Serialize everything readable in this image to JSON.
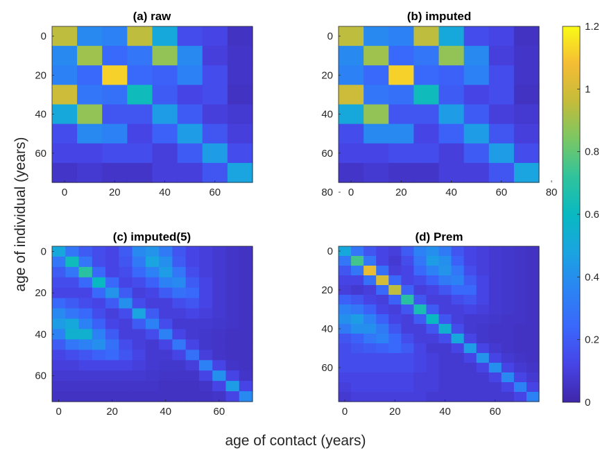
{
  "figure": {
    "ylabel": "age of individual (years)",
    "xlabel": "age of contact (years)"
  },
  "colorbar": {
    "colormap": "parula",
    "range": [
      0,
      1.2
    ],
    "ticks": [
      "0",
      "0.2",
      "0.4",
      "0.6",
      "0.8",
      "1",
      "1.2"
    ]
  },
  "chart_data": [
    {
      "type": "heatmap",
      "title": "(a) raw",
      "bin_years": 10,
      "xticks": [
        "0",
        "20",
        "40",
        "60"
      ],
      "yticks": [
        "0",
        "20",
        "40",
        "60"
      ],
      "matrix": [
        [
          0.95,
          0.38,
          0.35,
          0.95,
          0.5,
          0.15,
          0.12,
          0.05
        ],
        [
          0.38,
          0.9,
          0.25,
          0.3,
          0.88,
          0.38,
          0.1,
          0.06
        ],
        [
          0.35,
          0.25,
          1.12,
          0.25,
          0.22,
          0.35,
          0.15,
          0.06
        ],
        [
          0.98,
          0.3,
          0.28,
          0.62,
          0.2,
          0.12,
          0.15,
          0.05
        ],
        [
          0.5,
          0.88,
          0.18,
          0.18,
          0.45,
          0.2,
          0.1,
          0.08
        ],
        [
          0.15,
          0.38,
          0.35,
          0.12,
          0.22,
          0.45,
          0.18,
          0.1
        ],
        [
          0.12,
          0.12,
          0.15,
          0.15,
          0.1,
          0.2,
          0.45,
          0.15
        ],
        [
          0.06,
          0.08,
          0.06,
          0.06,
          0.1,
          0.1,
          0.18,
          0.48
        ]
      ]
    },
    {
      "type": "heatmap",
      "title": "(b) imputed",
      "bin_years": 10,
      "xticks": [
        "0",
        "20",
        "40",
        "60",
        "80"
      ],
      "yticks": [
        "0",
        "20",
        "40",
        "60",
        "80"
      ],
      "matrix": [
        [
          0.95,
          0.38,
          0.35,
          0.95,
          0.5,
          0.15,
          0.12,
          0.05
        ],
        [
          0.38,
          0.9,
          0.25,
          0.3,
          0.88,
          0.38,
          0.1,
          0.06
        ],
        [
          0.35,
          0.25,
          1.12,
          0.25,
          0.22,
          0.35,
          0.15,
          0.06
        ],
        [
          0.98,
          0.3,
          0.28,
          0.62,
          0.2,
          0.12,
          0.15,
          0.05
        ],
        [
          0.5,
          0.88,
          0.18,
          0.18,
          0.45,
          0.2,
          0.1,
          0.08
        ],
        [
          0.15,
          0.38,
          0.38,
          0.12,
          0.22,
          0.45,
          0.18,
          0.1
        ],
        [
          0.12,
          0.12,
          0.15,
          0.15,
          0.1,
          0.2,
          0.45,
          0.15
        ],
        [
          0.06,
          0.08,
          0.06,
          0.06,
          0.1,
          0.1,
          0.18,
          0.48
        ]
      ]
    },
    {
      "type": "heatmap",
      "title": "(c) imputed(5)",
      "bin_years": 5,
      "xticks": [
        "0",
        "20",
        "40",
        "60"
      ],
      "yticks": [
        "0",
        "20",
        "40",
        "60"
      ],
      "matrix": [
        [
          0.5,
          0.3,
          0.2,
          0.15,
          0.12,
          0.2,
          0.38,
          0.42,
          0.32,
          0.18,
          0.12,
          0.1,
          0.08,
          0.06,
          0.05
        ],
        [
          0.3,
          0.62,
          0.3,
          0.15,
          0.12,
          0.18,
          0.32,
          0.48,
          0.4,
          0.2,
          0.12,
          0.1,
          0.08,
          0.06,
          0.05
        ],
        [
          0.2,
          0.3,
          0.7,
          0.25,
          0.12,
          0.15,
          0.25,
          0.35,
          0.45,
          0.3,
          0.15,
          0.1,
          0.08,
          0.06,
          0.05
        ],
        [
          0.15,
          0.15,
          0.25,
          0.6,
          0.25,
          0.12,
          0.15,
          0.22,
          0.35,
          0.38,
          0.2,
          0.12,
          0.08,
          0.06,
          0.05
        ],
        [
          0.12,
          0.12,
          0.12,
          0.25,
          0.42,
          0.2,
          0.1,
          0.12,
          0.2,
          0.28,
          0.25,
          0.12,
          0.08,
          0.06,
          0.05
        ],
        [
          0.25,
          0.2,
          0.15,
          0.12,
          0.2,
          0.4,
          0.15,
          0.1,
          0.1,
          0.15,
          0.18,
          0.12,
          0.08,
          0.06,
          0.05
        ],
        [
          0.38,
          0.3,
          0.25,
          0.15,
          0.1,
          0.15,
          0.48,
          0.2,
          0.1,
          0.1,
          0.12,
          0.1,
          0.08,
          0.06,
          0.05
        ],
        [
          0.45,
          0.5,
          0.35,
          0.22,
          0.12,
          0.1,
          0.2,
          0.35,
          0.15,
          0.08,
          0.08,
          0.08,
          0.07,
          0.06,
          0.05
        ],
        [
          0.35,
          0.55,
          0.55,
          0.35,
          0.2,
          0.1,
          0.1,
          0.15,
          0.35,
          0.12,
          0.08,
          0.07,
          0.06,
          0.05,
          0.05
        ],
        [
          0.2,
          0.3,
          0.35,
          0.4,
          0.28,
          0.15,
          0.1,
          0.08,
          0.12,
          0.3,
          0.12,
          0.07,
          0.06,
          0.05,
          0.05
        ],
        [
          0.12,
          0.15,
          0.18,
          0.22,
          0.25,
          0.18,
          0.12,
          0.08,
          0.08,
          0.12,
          0.28,
          0.1,
          0.06,
          0.05,
          0.05
        ],
        [
          0.1,
          0.1,
          0.12,
          0.12,
          0.12,
          0.12,
          0.1,
          0.08,
          0.07,
          0.07,
          0.1,
          0.35,
          0.12,
          0.06,
          0.05
        ],
        [
          0.08,
          0.08,
          0.08,
          0.08,
          0.08,
          0.08,
          0.08,
          0.07,
          0.06,
          0.06,
          0.06,
          0.12,
          0.4,
          0.12,
          0.06
        ],
        [
          0.06,
          0.06,
          0.06,
          0.06,
          0.06,
          0.06,
          0.06,
          0.06,
          0.05,
          0.05,
          0.05,
          0.06,
          0.12,
          0.45,
          0.12
        ],
        [
          0.05,
          0.05,
          0.05,
          0.05,
          0.05,
          0.05,
          0.05,
          0.05,
          0.05,
          0.05,
          0.05,
          0.05,
          0.06,
          0.12,
          0.38
        ]
      ]
    },
    {
      "type": "heatmap",
      "title": "(d) Prem",
      "bin_years": 5,
      "xticks": [
        "0",
        "20",
        "40",
        "60"
      ],
      "yticks": [
        "0",
        "20",
        "40",
        "60"
      ],
      "matrix": [
        [
          0.5,
          0.3,
          0.18,
          0.12,
          0.1,
          0.2,
          0.35,
          0.4,
          0.32,
          0.18,
          0.12,
          0.1,
          0.08,
          0.07,
          0.06,
          0.05
        ],
        [
          0.3,
          0.75,
          0.3,
          0.12,
          0.08,
          0.15,
          0.3,
          0.45,
          0.4,
          0.22,
          0.12,
          0.1,
          0.08,
          0.07,
          0.06,
          0.05
        ],
        [
          0.18,
          0.3,
          1.05,
          0.28,
          0.1,
          0.12,
          0.25,
          0.35,
          0.42,
          0.3,
          0.15,
          0.1,
          0.08,
          0.07,
          0.06,
          0.05
        ],
        [
          0.12,
          0.12,
          0.28,
          1.0,
          0.25,
          0.12,
          0.15,
          0.22,
          0.32,
          0.35,
          0.2,
          0.12,
          0.08,
          0.07,
          0.06,
          0.05
        ],
        [
          0.1,
          0.08,
          0.1,
          0.25,
          0.95,
          0.22,
          0.1,
          0.12,
          0.18,
          0.25,
          0.25,
          0.12,
          0.08,
          0.07,
          0.06,
          0.05
        ],
        [
          0.22,
          0.18,
          0.12,
          0.1,
          0.22,
          0.7,
          0.18,
          0.1,
          0.1,
          0.15,
          0.18,
          0.12,
          0.08,
          0.07,
          0.06,
          0.05
        ],
        [
          0.35,
          0.3,
          0.22,
          0.12,
          0.1,
          0.18,
          0.65,
          0.2,
          0.1,
          0.1,
          0.12,
          0.1,
          0.08,
          0.07,
          0.06,
          0.05
        ],
        [
          0.4,
          0.45,
          0.35,
          0.22,
          0.12,
          0.1,
          0.2,
          0.6,
          0.18,
          0.1,
          0.08,
          0.08,
          0.07,
          0.06,
          0.06,
          0.05
        ],
        [
          0.32,
          0.4,
          0.4,
          0.32,
          0.18,
          0.1,
          0.1,
          0.18,
          0.55,
          0.15,
          0.08,
          0.07,
          0.06,
          0.06,
          0.05,
          0.05
        ],
        [
          0.18,
          0.22,
          0.3,
          0.35,
          0.25,
          0.15,
          0.1,
          0.1,
          0.15,
          0.5,
          0.12,
          0.07,
          0.06,
          0.06,
          0.05,
          0.05
        ],
        [
          0.15,
          0.18,
          0.2,
          0.22,
          0.25,
          0.2,
          0.12,
          0.08,
          0.08,
          0.12,
          0.45,
          0.12,
          0.08,
          0.06,
          0.05,
          0.05
        ],
        [
          0.15,
          0.15,
          0.15,
          0.15,
          0.15,
          0.15,
          0.12,
          0.1,
          0.08,
          0.08,
          0.12,
          0.42,
          0.12,
          0.08,
          0.06,
          0.05
        ],
        [
          0.15,
          0.15,
          0.15,
          0.15,
          0.15,
          0.15,
          0.12,
          0.1,
          0.08,
          0.08,
          0.08,
          0.12,
          0.4,
          0.12,
          0.08,
          0.06
        ],
        [
          0.12,
          0.12,
          0.12,
          0.12,
          0.12,
          0.12,
          0.1,
          0.1,
          0.08,
          0.08,
          0.08,
          0.08,
          0.12,
          0.38,
          0.12,
          0.08
        ],
        [
          0.1,
          0.12,
          0.12,
          0.12,
          0.12,
          0.12,
          0.1,
          0.1,
          0.08,
          0.08,
          0.08,
          0.08,
          0.08,
          0.12,
          0.35,
          0.12
        ],
        [
          0.08,
          0.1,
          0.1,
          0.1,
          0.1,
          0.1,
          0.1,
          0.08,
          0.08,
          0.08,
          0.08,
          0.08,
          0.08,
          0.08,
          0.12,
          0.35
        ]
      ]
    }
  ]
}
